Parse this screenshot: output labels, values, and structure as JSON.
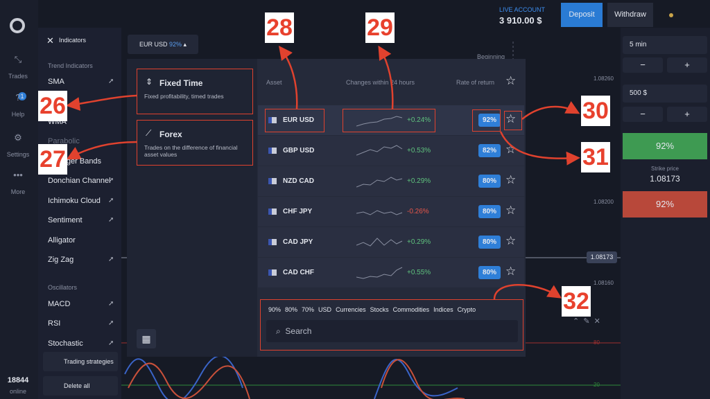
{
  "nav": {
    "items": [
      "Trades",
      "Help",
      "Settings",
      "More"
    ],
    "badge": "1",
    "online_count": "18844",
    "online_label": "online"
  },
  "indicators": {
    "title": "Indicators",
    "trend_heading": "Trend Indicators",
    "trend": [
      "SMA",
      "WMA",
      "Parabolic",
      "Bollinger Bands",
      "Donchian Channel",
      "Ichimoku Cloud",
      "Sentiment",
      "Alligator",
      "Zig Zag"
    ],
    "oscillators_heading": "Oscillators",
    "oscillators": [
      "MACD",
      "RSI",
      "Stochastic"
    ],
    "trading_strategies": "Trading strategies",
    "delete_all": "Delete all"
  },
  "header": {
    "asset": "EUR USD",
    "asset_rate": "92%",
    "account_label": "LIVE ACCOUNT",
    "balance": "3 910.00 $",
    "deposit": "Deposit",
    "withdraw": "Withdraw"
  },
  "trade_panel": {
    "duration": "5 min",
    "amount": "500 $",
    "minus": "−",
    "plus": "+",
    "up_rate": "92%",
    "strike_label": "Strike price",
    "strike_price": "1.08173",
    "down_rate": "92%"
  },
  "chart": {
    "beginning": "Beginning",
    "price_labels": [
      "1.08260",
      "1.08200",
      "1.08160"
    ],
    "current_price": "1.08173",
    "osc_labels": [
      "80",
      "20"
    ]
  },
  "modal": {
    "tabs": [
      {
        "title": "Fixed Time",
        "desc": "Fixed profitability, timed trades"
      },
      {
        "title": "Forex",
        "desc": "Trades on the difference of financial asset values"
      }
    ],
    "columns": {
      "asset": "Asset",
      "change": "Changes within 24 hours",
      "rate": "Rate of return"
    },
    "assets": [
      {
        "name": "EUR USD",
        "change": "+0.24%",
        "rate": "92%"
      },
      {
        "name": "GBP USD",
        "change": "+0.53%",
        "rate": "82%"
      },
      {
        "name": "NZD CAD",
        "change": "+0.29%",
        "rate": "80%"
      },
      {
        "name": "CHF JPY",
        "change": "-0.26%",
        "rate": "80%"
      },
      {
        "name": "CAD JPY",
        "change": "+0.29%",
        "rate": "80%"
      },
      {
        "name": "CAD CHF",
        "change": "+0.55%",
        "rate": "80%"
      }
    ],
    "filters": [
      "90%",
      "80%",
      "70%",
      "USD",
      "Currencies",
      "Stocks",
      "Commodities",
      "Indices",
      "Crypto"
    ],
    "search": "Search"
  },
  "annotations": [
    "26",
    "27",
    "28",
    "29",
    "30",
    "31",
    "32"
  ]
}
